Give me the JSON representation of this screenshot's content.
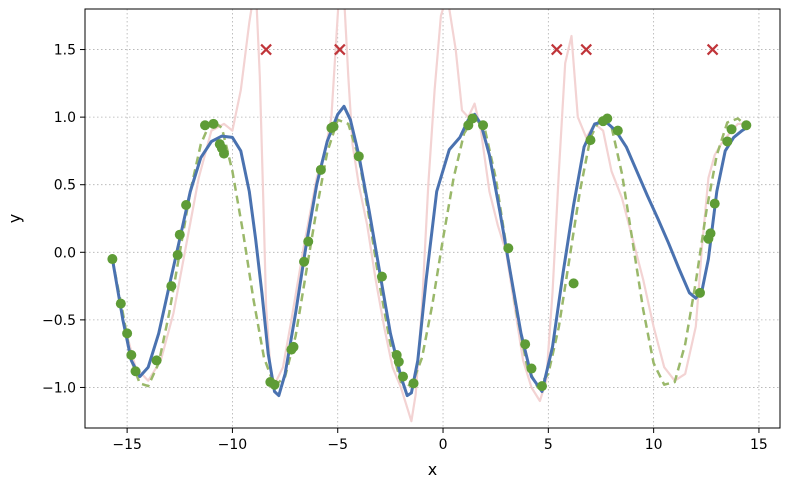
{
  "chart_data": {
    "type": "line",
    "title": "",
    "xlabel": "x",
    "ylabel": "y",
    "xlim": [
      -17,
      16
    ],
    "ylim": [
      -1.3,
      1.8
    ],
    "xticks": [
      -15,
      -10,
      -5,
      0,
      5,
      10,
      15
    ],
    "xtick_labels": [
      "−15",
      "−10",
      "−5",
      "0",
      "5",
      "10",
      "15"
    ],
    "yticks": [
      -1.0,
      -0.5,
      0.0,
      0.5,
      1.0,
      1.5
    ],
    "ytick_labels": [
      "−1.0",
      "−0.5",
      "0.0",
      "0.5",
      "1.0",
      "1.5"
    ],
    "grid": true,
    "legend": "none",
    "colors": {
      "fit": "#4a72b0",
      "true": "#9ab86a",
      "pink": "#f3d3d3",
      "points": "#5e9c36",
      "outliers": "#c0353a"
    },
    "series": [
      {
        "style": "solid-blue",
        "x": [
          -15.7,
          -15.2,
          -14.8,
          -14.4,
          -14.0,
          -13.5,
          -13.0,
          -12.5,
          -12.0,
          -11.5,
          -11.0,
          -10.5,
          -10.0,
          -9.6,
          -9.2,
          -8.9,
          -8.6,
          -8.3,
          -8.0,
          -7.8,
          -7.5,
          -7.0,
          -6.5,
          -6.0,
          -5.5,
          -5.0,
          -4.7,
          -4.4,
          -4.0,
          -3.5,
          -3.0,
          -2.5,
          -2.0,
          -1.7,
          -1.5,
          -1.2,
          -0.8,
          -0.3,
          0.3,
          0.8,
          1.2,
          1.5,
          1.8,
          2.2,
          2.7,
          3.2,
          3.7,
          4.2,
          4.7,
          5.2,
          5.7,
          6.2,
          6.7,
          7.2,
          7.7,
          8.2,
          8.7,
          9.2,
          9.7,
          10.2,
          10.7,
          11.2,
          11.7,
          12.0,
          12.3,
          12.6,
          13.0,
          13.4,
          13.8,
          14.2,
          14.5
        ],
        "y": [
          -0.05,
          -0.5,
          -0.8,
          -0.92,
          -0.85,
          -0.6,
          -0.25,
          0.1,
          0.45,
          0.7,
          0.82,
          0.86,
          0.85,
          0.75,
          0.45,
          0.1,
          -0.3,
          -0.75,
          -1.03,
          -1.06,
          -0.9,
          -0.45,
          0.05,
          0.5,
          0.82,
          1.02,
          1.08,
          0.98,
          0.72,
          0.3,
          -0.15,
          -0.6,
          -0.92,
          -1.06,
          -1.04,
          -0.8,
          -0.2,
          0.45,
          0.76,
          0.85,
          0.98,
          1.02,
          0.95,
          0.72,
          0.3,
          -0.15,
          -0.6,
          -0.92,
          -1.03,
          -0.7,
          -0.15,
          0.35,
          0.78,
          0.95,
          0.97,
          0.9,
          0.78,
          0.6,
          0.42,
          0.25,
          0.07,
          -0.12,
          -0.3,
          -0.34,
          -0.28,
          -0.05,
          0.45,
          0.75,
          0.85,
          0.9,
          0.93
        ]
      },
      {
        "style": "dashed-green",
        "x": [
          -15.7,
          -15.2,
          -14.8,
          -14.4,
          -14.0,
          -13.5,
          -13.0,
          -12.5,
          -12.0,
          -11.5,
          -11.0,
          -10.5,
          -10.0,
          -9.5,
          -9.0,
          -8.5,
          -8.0,
          -7.5,
          -7.0,
          -6.5,
          -6.0,
          -5.5,
          -5.0,
          -4.5,
          -4.0,
          -3.5,
          -3.0,
          -2.5,
          -2.0,
          -1.5,
          -1.0,
          -0.5,
          0.0,
          0.5,
          1.0,
          1.5,
          2.0,
          2.5,
          3.0,
          3.5,
          4.0,
          4.5,
          5.0,
          5.5,
          6.0,
          6.5,
          7.0,
          7.5,
          8.0,
          8.5,
          9.0,
          9.5,
          10.0,
          10.5,
          11.0,
          11.5,
          12.0,
          12.5,
          13.0,
          13.5,
          14.0,
          14.5
        ],
        "y": [
          -0.05,
          -0.45,
          -0.8,
          -0.97,
          -0.99,
          -0.82,
          -0.45,
          0.0,
          0.45,
          0.8,
          0.98,
          0.92,
          0.6,
          0.15,
          -0.35,
          -0.78,
          -0.99,
          -0.92,
          -0.62,
          -0.15,
          0.32,
          0.74,
          0.98,
          0.95,
          0.7,
          0.25,
          -0.25,
          -0.68,
          -0.96,
          -0.99,
          -0.78,
          -0.38,
          0.1,
          0.55,
          0.88,
          1.0,
          0.9,
          0.55,
          0.05,
          -0.45,
          -0.85,
          -1.0,
          -0.9,
          -0.55,
          -0.05,
          0.45,
          0.85,
          1.0,
          0.93,
          0.58,
          0.08,
          -0.42,
          -0.82,
          -0.98,
          -0.96,
          -0.68,
          -0.22,
          0.3,
          0.72,
          0.96,
          0.99,
          0.92
        ]
      },
      {
        "style": "faint-pink",
        "x": [
          -15.7,
          -15.2,
          -14.6,
          -14.0,
          -13.4,
          -12.8,
          -12.2,
          -11.6,
          -11.0,
          -10.4,
          -10.0,
          -9.6,
          -9.2,
          -8.9,
          -8.7,
          -8.5,
          -8.4,
          -8.2,
          -8.0,
          -7.6,
          -7.2,
          -6.6,
          -6.0,
          -5.6,
          -5.3,
          -5.1,
          -4.9,
          -4.7,
          -4.5,
          -4.3,
          -4.0,
          -3.6,
          -3.2,
          -2.8,
          -2.4,
          -2.0,
          -1.7,
          -1.5,
          -1.3,
          -1.0,
          -0.7,
          -0.4,
          -0.1,
          0.2,
          0.6,
          0.9,
          1.2,
          1.5,
          1.8,
          2.2,
          2.6,
          3.0,
          3.4,
          3.8,
          4.2,
          4.6,
          4.9,
          5.2,
          5.5,
          5.8,
          6.1,
          6.4,
          6.8,
          7.2,
          7.6,
          8.0,
          8.5,
          9.0,
          9.5,
          10.0,
          10.5,
          11.0,
          11.5,
          12.0,
          12.3,
          12.6,
          12.9,
          13.2,
          13.6,
          14.0,
          14.5
        ],
        "y": [
          -0.05,
          -0.5,
          -0.85,
          -0.95,
          -0.8,
          -0.45,
          0.05,
          0.55,
          0.9,
          0.95,
          0.9,
          1.2,
          1.7,
          2.0,
          1.3,
          0.2,
          -0.4,
          -0.85,
          -0.98,
          -0.85,
          -0.5,
          0.05,
          0.55,
          0.75,
          1.0,
          1.5,
          2.0,
          1.9,
          1.3,
          0.8,
          0.5,
          0.2,
          -0.2,
          -0.55,
          -0.85,
          -1.0,
          -1.15,
          -1.25,
          -1.05,
          -0.4,
          0.5,
          1.2,
          1.75,
          1.9,
          1.5,
          1.05,
          1.0,
          1.1,
          0.9,
          0.45,
          0.2,
          0.0,
          -0.4,
          -0.8,
          -1.0,
          -1.1,
          -0.95,
          -0.3,
          0.6,
          1.4,
          1.6,
          1.0,
          0.85,
          0.95,
          0.9,
          0.6,
          0.4,
          0.1,
          -0.2,
          -0.55,
          -0.85,
          -0.95,
          -0.9,
          -0.55,
          0.05,
          0.55,
          0.72,
          0.8,
          0.88,
          0.95,
          0.95
        ]
      }
    ],
    "points": {
      "x": [
        -15.7,
        -15.3,
        -15.0,
        -14.8,
        -14.6,
        -13.6,
        -12.9,
        -12.6,
        -12.5,
        -12.2,
        -11.3,
        -10.9,
        -10.6,
        -10.5,
        -10.4,
        -8.2,
        -8.0,
        -7.2,
        -7.1,
        -6.6,
        -6.4,
        -5.8,
        -5.3,
        -5.2,
        -4.0,
        -2.9,
        -2.2,
        -2.1,
        -1.9,
        -1.4,
        1.2,
        1.4,
        1.9,
        3.1,
        3.9,
        4.2,
        4.7,
        6.2,
        7.0,
        7.6,
        7.8,
        8.3,
        12.2,
        12.6,
        12.7,
        12.9,
        13.5,
        13.7,
        14.4
      ],
      "y": [
        -0.05,
        -0.38,
        -0.6,
        -0.76,
        -0.88,
        -0.8,
        -0.25,
        -0.02,
        0.13,
        0.35,
        0.94,
        0.95,
        0.8,
        0.77,
        0.73,
        -0.96,
        -0.98,
        -0.72,
        -0.7,
        -0.07,
        0.08,
        0.61,
        0.92,
        0.93,
        0.71,
        -0.18,
        -0.76,
        -0.81,
        -0.92,
        -0.97,
        0.94,
        0.99,
        0.94,
        0.03,
        -0.68,
        -0.86,
        -0.99,
        -0.23,
        0.83,
        0.97,
        0.99,
        0.9,
        -0.3,
        0.1,
        0.14,
        0.36,
        0.82,
        0.91,
        0.94
      ]
    },
    "outliers": {
      "x": [
        -8.4,
        -4.9,
        5.4,
        6.8,
        12.8
      ],
      "y": [
        1.5,
        1.5,
        1.5,
        1.5,
        1.5
      ]
    }
  }
}
